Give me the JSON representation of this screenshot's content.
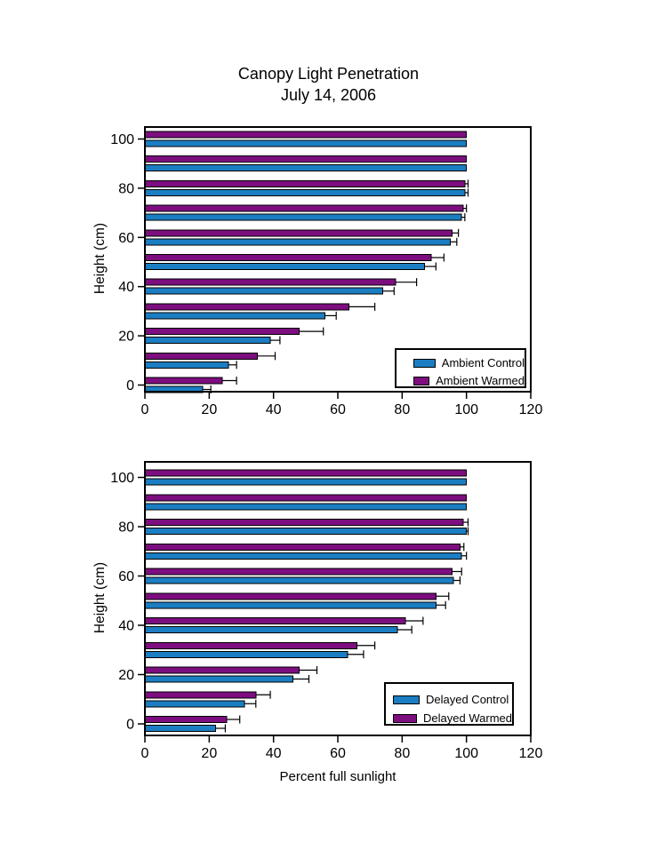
{
  "title": "Canopy Light Penetration",
  "subtitle": "July 14, 2006",
  "colors": {
    "control_blue": "#1B7EC2",
    "warmed_purple": "#7D0E7F",
    "axis": "#000000",
    "background": "#FFFFFF"
  },
  "chart_data": [
    {
      "type": "bar",
      "orientation": "horizontal",
      "panel": "top",
      "title": "",
      "xlabel": "",
      "ylabel": "Height (cm)",
      "xlim": [
        0,
        120
      ],
      "xticks": [
        0,
        20,
        40,
        60,
        80,
        100,
        120
      ],
      "yticks": [
        0,
        20,
        40,
        60,
        80,
        100
      ],
      "categories_height_cm": [
        0,
        10,
        20,
        30,
        40,
        50,
        60,
        70,
        80,
        90,
        100
      ],
      "series": [
        {
          "name": "Ambient Control",
          "color": "#1B7EC2",
          "values": [
            18,
            26,
            39,
            56,
            74,
            87,
            95,
            98.5,
            99.5,
            100,
            100
          ],
          "errors": [
            2.5,
            2.5,
            3,
            3.5,
            3.5,
            3.5,
            2,
            1,
            1,
            0,
            0
          ]
        },
        {
          "name": "Ambient Warmed",
          "color": "#7D0E7F",
          "values": [
            24,
            35,
            48,
            63.5,
            78,
            89,
            95.5,
            99,
            99.5,
            100,
            100
          ],
          "errors": [
            4.5,
            5.5,
            7.5,
            8,
            6.5,
            4,
            2,
            1,
            1,
            0,
            0
          ]
        }
      ],
      "legend": {
        "position": "lower-right",
        "entries": [
          "Ambient Control",
          "Ambient Warmed"
        ]
      },
      "grid": "off"
    },
    {
      "type": "bar",
      "orientation": "horizontal",
      "panel": "bottom",
      "title": "",
      "xlabel": "Percent full sunlight",
      "ylabel": "Height (cm)",
      "xlim": [
        0,
        120
      ],
      "xticks": [
        0,
        20,
        40,
        60,
        80,
        100,
        120
      ],
      "yticks": [
        0,
        20,
        40,
        60,
        80,
        100
      ],
      "categories_height_cm": [
        0,
        10,
        20,
        30,
        40,
        50,
        60,
        70,
        80,
        90,
        100
      ],
      "series": [
        {
          "name": "Delayed Control",
          "color": "#1B7EC2",
          "values": [
            22,
            31,
            46,
            63,
            78.5,
            90.5,
            96,
            98.5,
            100,
            100,
            100
          ],
          "errors": [
            3,
            3.5,
            5,
            5,
            4.5,
            3,
            2,
            1.5,
            0.5,
            0,
            0
          ]
        },
        {
          "name": "Delayed Warmed",
          "color": "#7D0E7F",
          "values": [
            25.5,
            34.5,
            48,
            66,
            81,
            90.5,
            95.5,
            98,
            99,
            100,
            100
          ],
          "errors": [
            4,
            4.5,
            5.5,
            5.5,
            5.5,
            4,
            3,
            1.2,
            1.5,
            0,
            0
          ]
        }
      ],
      "legend": {
        "position": "lower-right",
        "entries": [
          "Delayed Control",
          "Delayed Warmed"
        ]
      },
      "grid": "off"
    }
  ]
}
